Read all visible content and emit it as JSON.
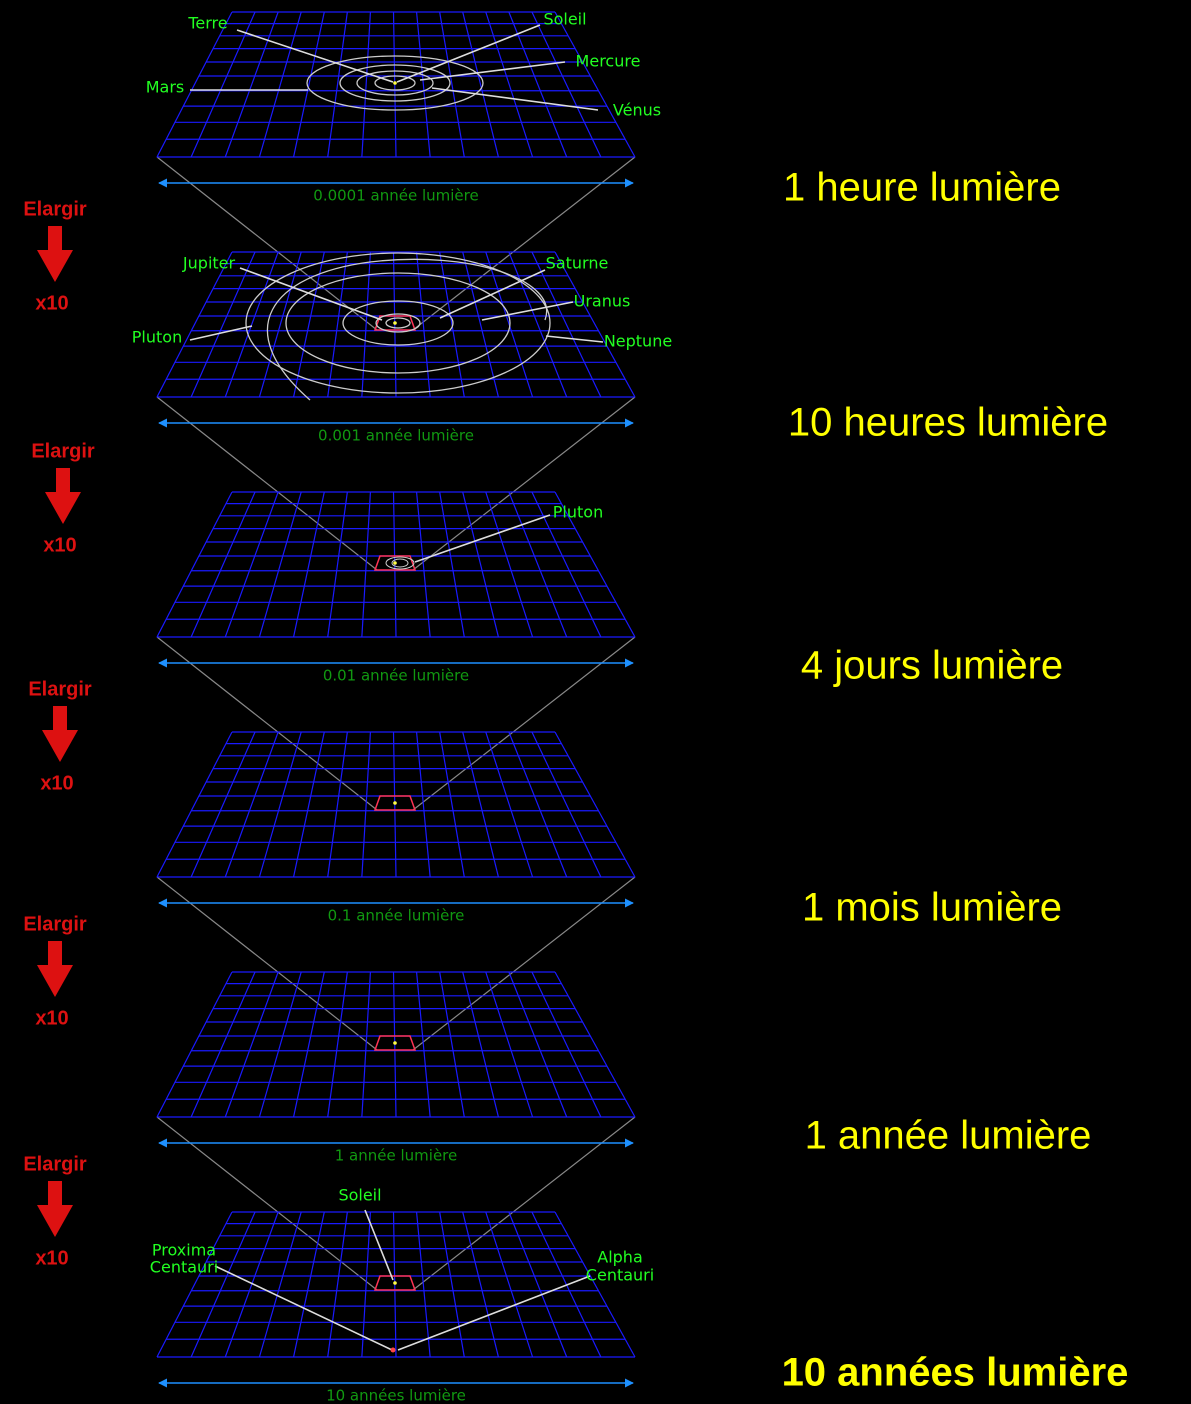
{
  "panels": [
    {
      "labels": [
        "Terre",
        "Soleil",
        "Mercure",
        "Mars",
        "Vénus"
      ],
      "scale": "0.0001 année lumière",
      "distance": "1 heure lumière"
    },
    {
      "labels": [
        "Jupiter",
        "Saturne",
        "Uranus",
        "Neptune",
        "Pluton"
      ],
      "scale": "0.001 année lumière",
      "distance": "10 heures lumière"
    },
    {
      "labels": [
        "Pluton"
      ],
      "scale": "0.01 année lumière",
      "distance": "4 jours lumière"
    },
    {
      "labels": [],
      "scale": "0.1 année lumière",
      "distance": "1 mois lumière"
    },
    {
      "labels": [],
      "scale": "1 année lumière",
      "distance": "1 année lumière"
    },
    {
      "labels": [
        "Soleil",
        "Proxima",
        "Centauri",
        "Alpha",
        "Centauri"
      ],
      "scale": "10 années lumière",
      "distance": "10 années lumière"
    }
  ],
  "zoom": [
    {
      "action": "Elargir",
      "factor": "x10"
    },
    {
      "action": "Elargir",
      "factor": "x10"
    },
    {
      "action": "Elargir",
      "factor": "x10"
    },
    {
      "action": "Elargir",
      "factor": "x10"
    },
    {
      "action": "Elargir",
      "factor": "x10"
    }
  ]
}
